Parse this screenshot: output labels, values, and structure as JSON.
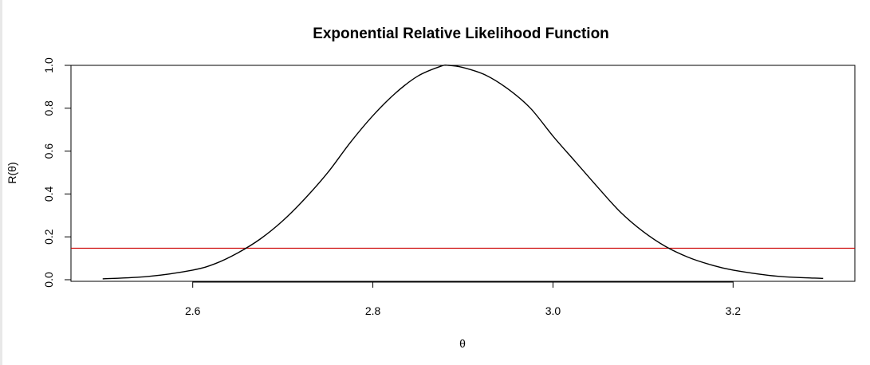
{
  "chart_data": {
    "type": "line",
    "title": "Exponential Relative Likelihood Function",
    "xlabel": "θ",
    "ylabel": "R(θ)",
    "xlim": [
      2.4648,
      3.3352
    ],
    "ylim": [
      -0.0075,
      1.0
    ],
    "xticks": [
      2.6,
      2.8,
      3.0,
      3.2
    ],
    "xtick_labels": [
      "2.6",
      "2.8",
      "3.0",
      "3.2"
    ],
    "yticks": [
      0.0,
      0.2,
      0.4,
      0.6,
      0.8,
      1.0
    ],
    "ytick_labels": [
      "0.0",
      "0.2",
      "0.4",
      "0.6",
      "0.8",
      "1.0"
    ],
    "grid": false,
    "series": [
      {
        "color": "#000000",
        "x": [
          2.5,
          2.55,
          2.6,
          2.625,
          2.65,
          2.675,
          2.7,
          2.725,
          2.75,
          2.775,
          2.8,
          2.825,
          2.85,
          2.875,
          2.884,
          2.9,
          2.925,
          2.95,
          2.975,
          3.0,
          3.025,
          3.05,
          3.075,
          3.1,
          3.125,
          3.15,
          3.175,
          3.2,
          3.25,
          3.3
        ],
        "y": [
          0.004,
          0.015,
          0.045,
          0.075,
          0.125,
          0.19,
          0.275,
          0.38,
          0.5,
          0.64,
          0.765,
          0.87,
          0.95,
          0.995,
          1.0,
          0.99,
          0.955,
          0.89,
          0.8,
          0.67,
          0.55,
          0.43,
          0.315,
          0.225,
          0.155,
          0.105,
          0.07,
          0.045,
          0.016,
          0.006
        ]
      }
    ],
    "hline": {
      "y": 0.147,
      "color": "#cc0000"
    }
  }
}
